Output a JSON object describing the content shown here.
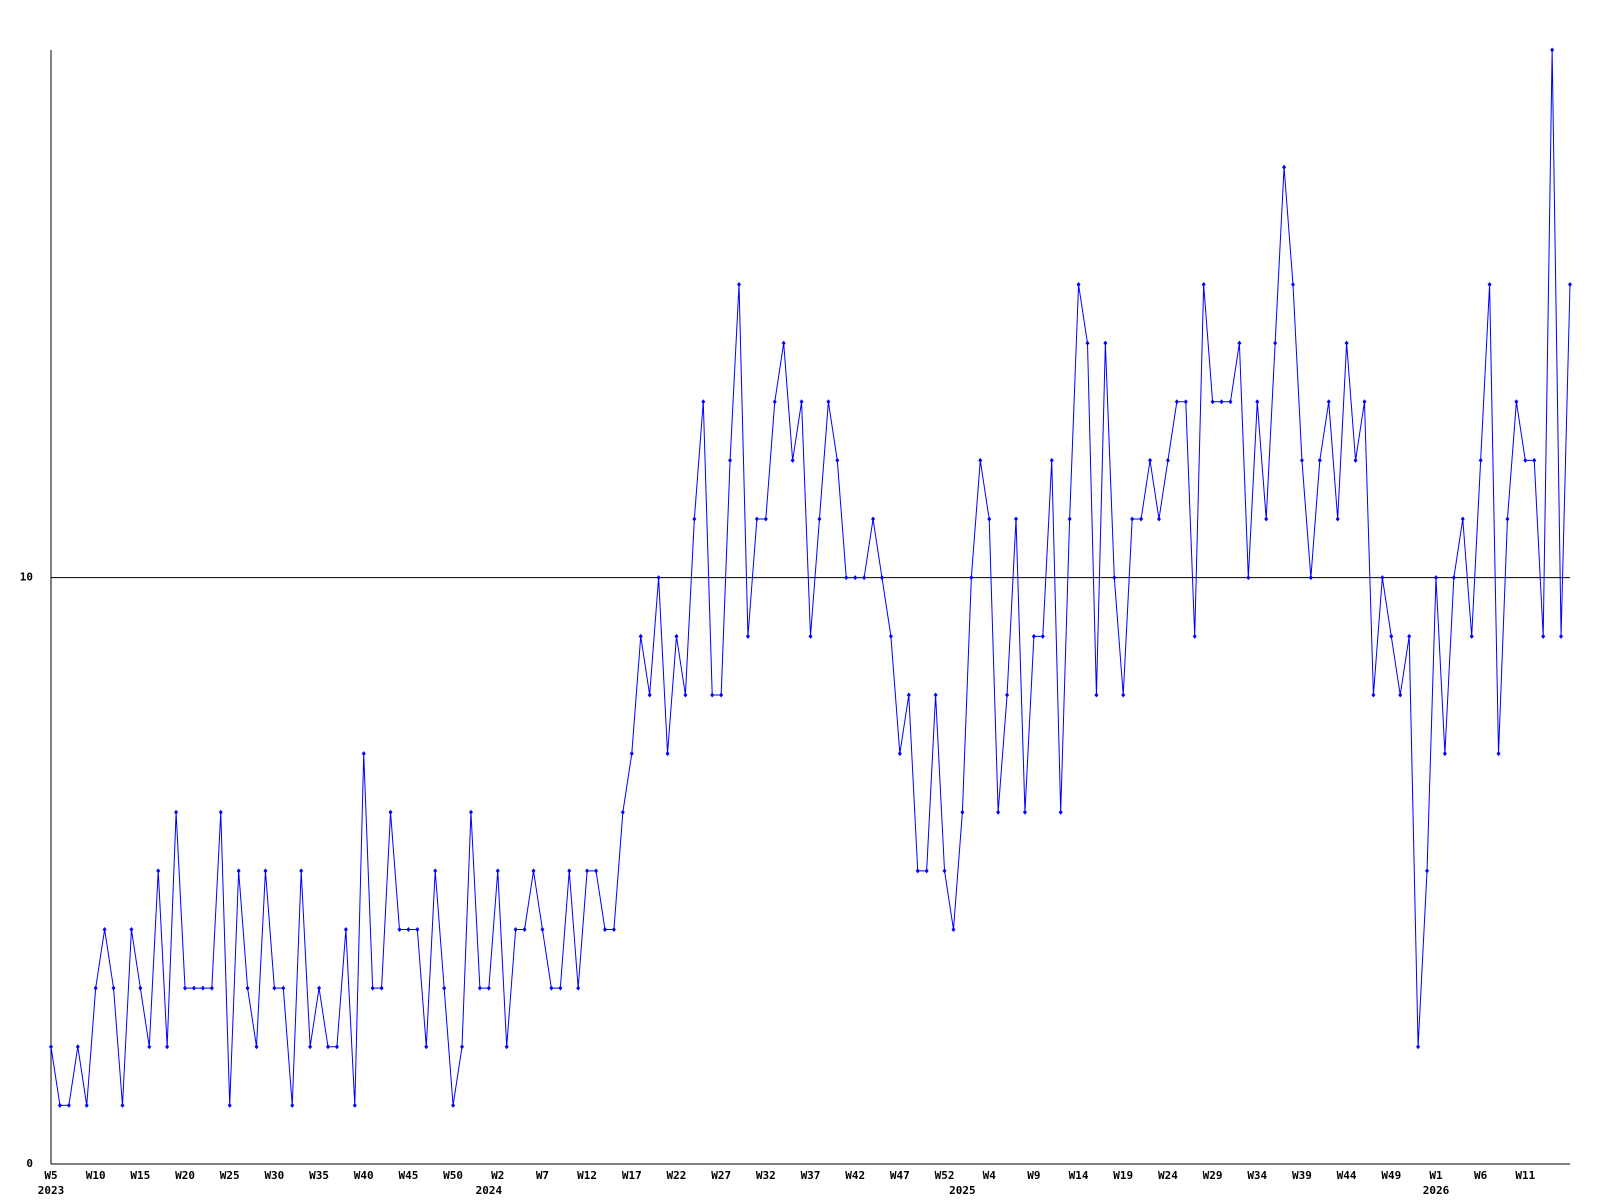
{
  "chart_data": {
    "type": "line",
    "color": "#0000ff",
    "ylim": [
      0,
      19
    ],
    "yticks": [
      0,
      10
    ],
    "grid": true,
    "categories": [
      "W5",
      null,
      null,
      null,
      null,
      "W10",
      null,
      null,
      null,
      null,
      "W15",
      null,
      null,
      null,
      null,
      "W20",
      null,
      null,
      null,
      null,
      "W25",
      null,
      null,
      null,
      null,
      "W30",
      null,
      null,
      null,
      null,
      "W35",
      null,
      null,
      null,
      null,
      "W40",
      null,
      null,
      null,
      null,
      "W45",
      null,
      null,
      null,
      null,
      "W50",
      null,
      null,
      null,
      null,
      "W2",
      null,
      null,
      null,
      null,
      "W7",
      null,
      null,
      null,
      null,
      "W12",
      null,
      null,
      null,
      null,
      "W17",
      null,
      null,
      null,
      null,
      "W22",
      null,
      null,
      null,
      null,
      "W27",
      null,
      null,
      null,
      null,
      "W32",
      null,
      null,
      null,
      null,
      "W37",
      null,
      null,
      null,
      null,
      "W42",
      null,
      null,
      null,
      null,
      "W47",
      null,
      null,
      null,
      null,
      "W52",
      null,
      null,
      null,
      null,
      "W4",
      null,
      null,
      null,
      null,
      "W9",
      null,
      null,
      null,
      null,
      "W14",
      null,
      null,
      null,
      null,
      "W19",
      null,
      null,
      null,
      null,
      "W24",
      null,
      null,
      null,
      null,
      "W29",
      null,
      null,
      null,
      null,
      "W34",
      null,
      null,
      null,
      null,
      "W39",
      null,
      null,
      null,
      null,
      "W44",
      null,
      null,
      null,
      null,
      "W49",
      null,
      null,
      null,
      null,
      "W1",
      null,
      null,
      null,
      null,
      "W6",
      null,
      null,
      null,
      null,
      "W11",
      null,
      null,
      null,
      null,
      null
    ],
    "category_years": [
      "2023",
      null,
      null,
      null,
      null,
      null,
      null,
      null,
      null,
      null,
      null,
      null,
      null,
      null,
      null,
      null,
      null,
      null,
      null,
      null,
      null,
      null,
      null,
      null,
      null,
      null,
      null,
      null,
      null,
      null,
      null,
      null,
      null,
      null,
      null,
      null,
      null,
      null,
      null,
      null,
      null,
      null,
      null,
      null,
      null,
      null,
      null,
      null,
      null,
      "2024",
      null,
      null,
      null,
      null,
      null,
      null,
      null,
      null,
      null,
      null,
      null,
      null,
      null,
      null,
      null,
      null,
      null,
      null,
      null,
      null,
      null,
      null,
      null,
      null,
      null,
      null,
      null,
      null,
      null,
      null,
      null,
      null,
      null,
      null,
      null,
      null,
      null,
      null,
      null,
      null,
      null,
      null,
      null,
      null,
      null,
      null,
      null,
      null,
      null,
      null,
      null,
      null,
      "2025",
      null,
      null,
      null,
      null,
      null,
      null,
      null,
      null,
      null,
      null,
      null,
      null,
      null,
      null,
      null,
      null,
      null,
      null,
      null,
      null,
      null,
      null,
      null,
      null,
      null,
      null,
      null,
      null,
      null,
      null,
      null,
      null,
      null,
      null,
      null,
      null,
      null,
      null,
      null,
      null,
      null,
      null,
      null,
      null,
      null,
      null,
      null,
      null,
      null,
      null,
      null,
      null,
      "2026",
      null,
      null,
      null,
      null,
      null,
      null,
      null,
      null,
      null,
      null,
      null,
      null,
      null,
      null,
      null
    ],
    "values": [
      2,
      1,
      1,
      2,
      1,
      3,
      4,
      3,
      1,
      4,
      3,
      2,
      5,
      2,
      6,
      3,
      3,
      3,
      3,
      6,
      1,
      5,
      3,
      2,
      5,
      3,
      3,
      1,
      5,
      2,
      3,
      2,
      2,
      4,
      1,
      7,
      3,
      3,
      6,
      4,
      4,
      4,
      2,
      5,
      3,
      1,
      2,
      6,
      3,
      3,
      5,
      2,
      4,
      4,
      5,
      4,
      3,
      3,
      5,
      3,
      5,
      5,
      4,
      4,
      6,
      7,
      9,
      8,
      10,
      7,
      9,
      8,
      11,
      13,
      8,
      8,
      12,
      15,
      9,
      11,
      11,
      13,
      14,
      12,
      13,
      9,
      11,
      13,
      12,
      10,
      10,
      10,
      11,
      10,
      9,
      7,
      8,
      5,
      5,
      8,
      5,
      4,
      6,
      10,
      12,
      11,
      6,
      8,
      11,
      6,
      9,
      9,
      12,
      6,
      11,
      15,
      14,
      8,
      14,
      10,
      8,
      11,
      11,
      12,
      11,
      12,
      13,
      13,
      9,
      15,
      13,
      13,
      13,
      14,
      10,
      13,
      11,
      14,
      17,
      15,
      12,
      10,
      12,
      13,
      11,
      14,
      12,
      13,
      8,
      10,
      9,
      8,
      9,
      2,
      5,
      10,
      7,
      10,
      11,
      9,
      12,
      15,
      7,
      11,
      13,
      12,
      12,
      9,
      19,
      9,
      15
    ]
  }
}
